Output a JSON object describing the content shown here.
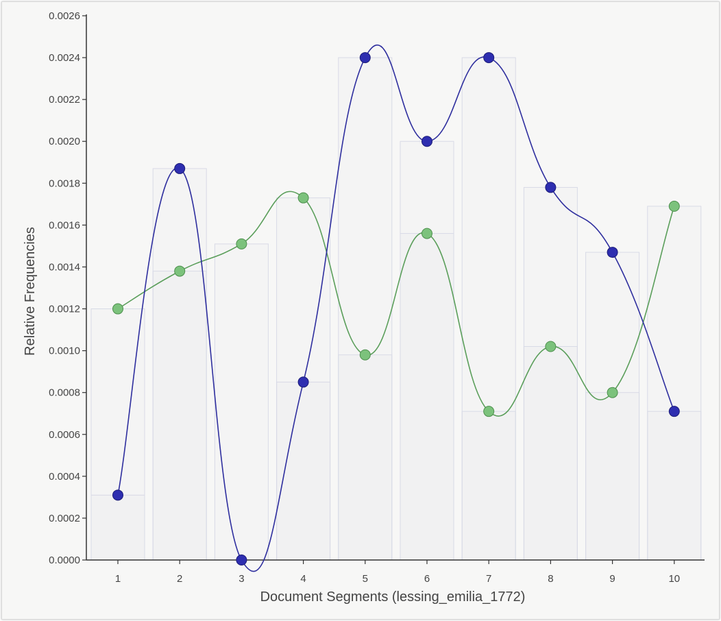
{
  "chart_data": {
    "type": "line",
    "xlabel": "Document Segments (lessing_emilia_1772)",
    "ylabel": "Relative Frequencies",
    "x": [
      1,
      2,
      3,
      4,
      5,
      6,
      7,
      8,
      9,
      10
    ],
    "xticks": [
      "1",
      "2",
      "3",
      "4",
      "5",
      "6",
      "7",
      "8",
      "9",
      "10"
    ],
    "ylim": [
      0,
      0.0026
    ],
    "yticks": [
      "0.0000",
      "0.0002",
      "0.0004",
      "0.0006",
      "0.0008",
      "0.0010",
      "0.0012",
      "0.0014",
      "0.0016",
      "0.0018",
      "0.0020",
      "0.0022",
      "0.0024",
      "0.0026"
    ],
    "grid": false,
    "legend": "none",
    "bars_behind_series": true,
    "series": [
      {
        "color": "#2e2e9e",
        "curve": "smooth",
        "values": [
          0.00031,
          0.00187,
          0.0,
          0.00085,
          0.0024,
          0.002,
          0.0024,
          0.00178,
          0.00147,
          0.00071
        ]
      },
      {
        "color": "#5a9e5a",
        "curve": "smooth",
        "values": [
          0.0012,
          0.00138,
          0.00151,
          0.00173,
          0.00098,
          0.00156,
          0.00071,
          0.00102,
          0.0008,
          0.00169
        ]
      }
    ]
  }
}
